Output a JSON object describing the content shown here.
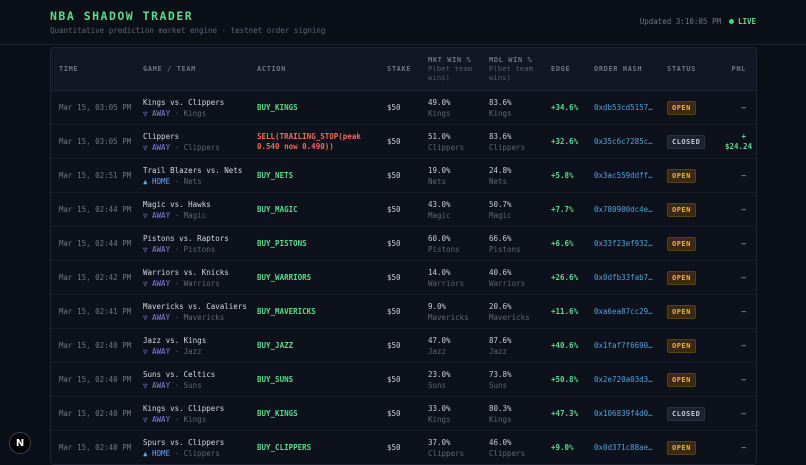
{
  "header": {
    "title": "NBA SHADOW TRADER",
    "subtitle": "Quantitative prediction market engine · testnet order signing",
    "updated": "Updated 3:10:05 PM",
    "live": "LIVE"
  },
  "columns": {
    "time": "TIME",
    "game": "GAME / TEAM",
    "action": "ACTION",
    "stake": "STAKE",
    "mkt": "MKT WIN %",
    "mkt_sub": "P(bet team wins)",
    "mdl": "MDL WIN %",
    "mdl_sub": "P(bet team wins)",
    "edge": "EDGE",
    "hash": "ORDER HASH",
    "status": "STATUS",
    "pnl": "PNL"
  },
  "rows": [
    {
      "time": "Mar 15, 03:05 PM",
      "game": "Kings vs. Clippers",
      "side": "▽ AWAY",
      "team": "Kings",
      "action": "BUY_KINGS",
      "stake": "$50",
      "mkt": "49.0%",
      "mdl": "83.6%",
      "edge": "+34.6%",
      "hash": "0xdb53cd5157…",
      "status": "OPEN",
      "pnl": "—"
    },
    {
      "time": "Mar 15, 03:05 PM",
      "game": "Clippers",
      "side": "▽ AWAY",
      "team": "Clippers",
      "action": "SELL(TRAILING_STOP(peak 0.540 now 0.490))",
      "stake": "$50",
      "mkt": "51.0%",
      "mdl": "83.6%",
      "edge": "+32.6%",
      "hash": "0x35c6c7285c…",
      "status": "CLOSED",
      "pnl": "+ $24.24"
    },
    {
      "time": "Mar 15, 02:51 PM",
      "game": "Trail Blazers vs. Nets",
      "side": "▲ HOME",
      "team": "Nets",
      "action": "BUY_NETS",
      "stake": "$50",
      "mkt": "19.0%",
      "mdl": "24.8%",
      "edge": "+5.8%",
      "hash": "0x3ac559ddff…",
      "status": "OPEN",
      "pnl": "—"
    },
    {
      "time": "Mar 15, 02:44 PM",
      "game": "Magic vs. Hawks",
      "side": "▽ AWAY",
      "team": "Magic",
      "action": "BUY_MAGIC",
      "stake": "$50",
      "mkt": "43.0%",
      "mdl": "50.7%",
      "edge": "+7.7%",
      "hash": "0x780900dc4e…",
      "status": "OPEN",
      "pnl": "—"
    },
    {
      "time": "Mar 15, 02:44 PM",
      "game": "Pistons vs. Raptors",
      "side": "▽ AWAY",
      "team": "Pistons",
      "action": "BUY_PISTONS",
      "stake": "$50",
      "mkt": "60.0%",
      "mdl": "66.6%",
      "edge": "+6.6%",
      "hash": "0x33f23ef932…",
      "status": "OPEN",
      "pnl": "—"
    },
    {
      "time": "Mar 15, 02:42 PM",
      "game": "Warriors vs. Knicks",
      "side": "▽ AWAY",
      "team": "Warriors",
      "action": "BUY_WARRIORS",
      "stake": "$50",
      "mkt": "14.0%",
      "mdl": "40.6%",
      "edge": "+26.6%",
      "hash": "0x0dfb33fab7…",
      "status": "OPEN",
      "pnl": "—"
    },
    {
      "time": "Mar 15, 02:41 PM",
      "game": "Mavericks vs. Cavaliers",
      "side": "▽ AWAY",
      "team": "Mavericks",
      "action": "BUY_MAVERICKS",
      "stake": "$50",
      "mkt": "9.0%",
      "mdl": "20.6%",
      "edge": "+11.6%",
      "hash": "0xa6ea87cc29…",
      "status": "OPEN",
      "pnl": "—"
    },
    {
      "time": "Mar 15, 02:40 PM",
      "game": "Jazz vs. Kings",
      "side": "▽ AWAY",
      "team": "Jazz",
      "action": "BUY_JAZZ",
      "stake": "$50",
      "mkt": "47.0%",
      "mdl": "87.6%",
      "edge": "+40.6%",
      "hash": "0x1faf7f6690…",
      "status": "OPEN",
      "pnl": "—"
    },
    {
      "time": "Mar 15, 02:40 PM",
      "game": "Suns vs. Celtics",
      "side": "▽ AWAY",
      "team": "Suns",
      "action": "BUY_SUNS",
      "stake": "$50",
      "mkt": "23.0%",
      "mdl": "73.8%",
      "edge": "+50.8%",
      "hash": "0x2e720a03d3…",
      "status": "OPEN",
      "pnl": "—"
    },
    {
      "time": "Mar 15, 02:40 PM",
      "game": "Kings vs. Clippers",
      "side": "▽ AWAY",
      "team": "Kings",
      "action": "BUY_KINGS",
      "stake": "$50",
      "mkt": "33.0%",
      "mdl": "80.3%",
      "edge": "+47.3%",
      "hash": "0x106839f4d0…",
      "status": "CLOSED",
      "pnl": "—"
    },
    {
      "time": "Mar 15, 02:40 PM",
      "game": "Spurs vs. Clippers",
      "side": "▲ HOME",
      "team": "Clippers",
      "action": "BUY_CLIPPERS",
      "stake": "$50",
      "mkt": "37.0%",
      "mdl": "46.0%",
      "edge": "+9.0%",
      "hash": "0x0d371c88ae…",
      "status": "OPEN",
      "pnl": "—"
    }
  ],
  "logo": "N"
}
